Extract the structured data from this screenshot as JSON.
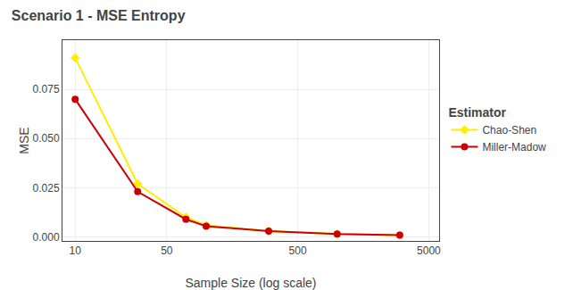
{
  "chart_data": {
    "type": "line",
    "title": "Scenario 1 - MSE Entropy",
    "x_label": "Sample Size (log scale)",
    "y_label": "MSE",
    "legend_title": "Estimator",
    "log": "x",
    "grid": true,
    "legend": "right",
    "series": [
      {
        "name": "Chao-Shen",
        "color": "#ffee00",
        "marker": "diamond",
        "x": [
          10,
          30,
          70,
          100,
          300,
          1000,
          3000
        ],
        "values": [
          0.091,
          0.027,
          0.01,
          0.006,
          0.003,
          0.0015,
          0.001
        ]
      },
      {
        "name": "Miller-Madow",
        "color": "#cc0000",
        "marker": "circle",
        "x": [
          10,
          30,
          70,
          100,
          300,
          1000,
          3000
        ],
        "values": [
          0.07,
          0.023,
          0.009,
          0.0055,
          0.003,
          0.0015,
          0.001
        ]
      }
    ],
    "xlim": [
      8,
      6000
    ],
    "xticks": [
      10,
      50,
      500,
      5000
    ],
    "ylim": [
      -0.002,
      0.1
    ],
    "yticks": [
      {
        "value": 0,
        "label": "0.000"
      },
      0.025,
      {
        "value": 0.05,
        "label": "0.050"
      },
      0.075
    ]
  }
}
